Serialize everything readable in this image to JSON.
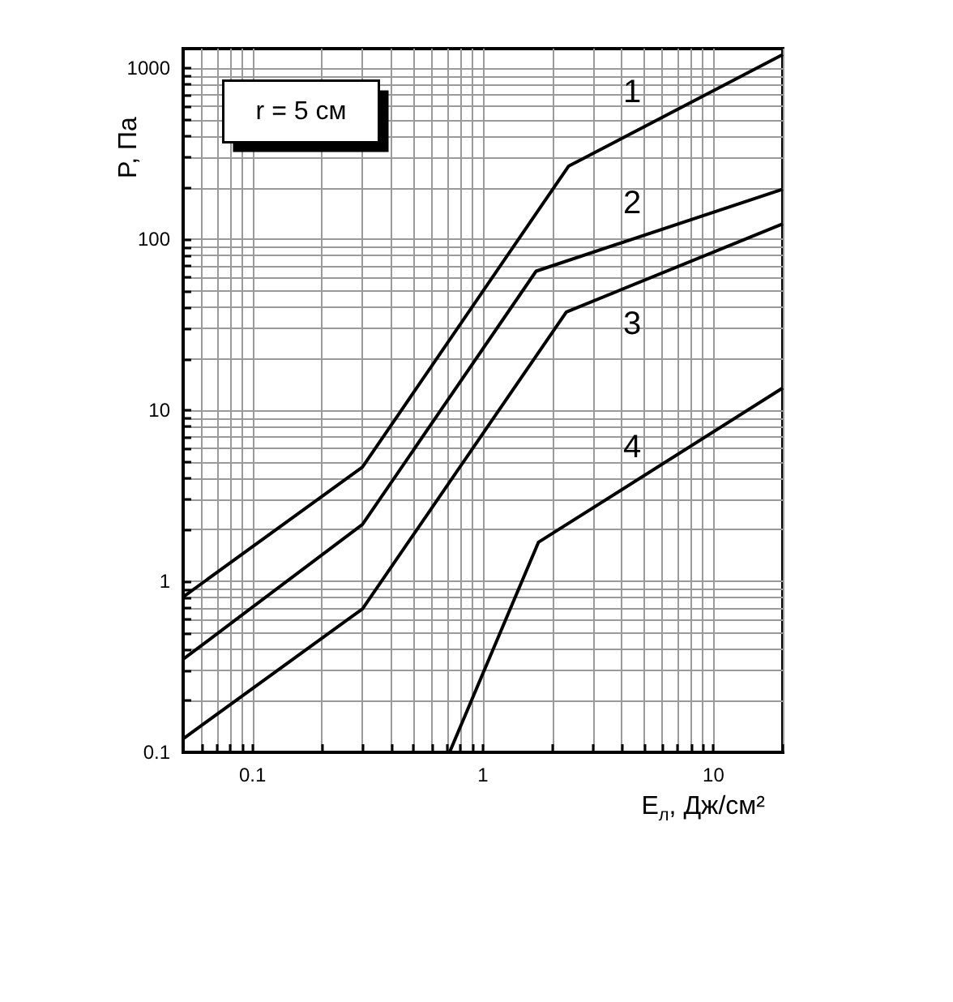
{
  "chart_data": {
    "type": "line",
    "xlabel": "E$_{л}$, Дж/см²",
    "ylabel": "P, Па",
    "log": "xy",
    "grid": true,
    "line_style": "solid",
    "marker": "none",
    "xlim": [
      0.05,
      20
    ],
    "ylim": [
      0.1,
      1300
    ],
    "xticks": [
      {
        "value": 0.05,
        "label": null
      },
      {
        "value": 0.06,
        "label": null
      },
      {
        "value": 0.07,
        "label": null
      },
      {
        "value": 0.08,
        "label": null
      },
      {
        "value": 0.09,
        "label": null
      },
      0.1,
      {
        "value": 0.2,
        "label": null
      },
      {
        "value": 0.3,
        "label": null
      },
      {
        "value": 0.4,
        "label": null
      },
      {
        "value": 0.5,
        "label": null
      },
      {
        "value": 0.6,
        "label": null
      },
      {
        "value": 0.7,
        "label": null
      },
      {
        "value": 0.8,
        "label": null
      },
      {
        "value": 0.9,
        "label": null
      },
      1,
      {
        "value": 2,
        "label": null
      },
      {
        "value": 3,
        "label": null
      },
      {
        "value": 4,
        "label": null
      },
      {
        "value": 5,
        "label": null
      },
      {
        "value": 6,
        "label": null
      },
      {
        "value": 7,
        "label": null
      },
      {
        "value": 8,
        "label": null
      },
      {
        "value": 9,
        "label": null
      },
      10,
      {
        "value": 20,
        "label": null
      }
    ],
    "yticks": [
      0.1,
      {
        "value": 0.2,
        "label": null
      },
      {
        "value": 0.3,
        "label": null
      },
      {
        "value": 0.4,
        "label": null
      },
      {
        "value": 0.5,
        "label": null
      },
      {
        "value": 0.6,
        "label": null
      },
      {
        "value": 0.7,
        "label": null
      },
      {
        "value": 0.8,
        "label": null
      },
      {
        "value": 0.9,
        "label": null
      },
      1,
      {
        "value": 2,
        "label": null
      },
      {
        "value": 3,
        "label": null
      },
      {
        "value": 4,
        "label": null
      },
      {
        "value": 5,
        "label": null
      },
      {
        "value": 6,
        "label": null
      },
      {
        "value": 7,
        "label": null
      },
      {
        "value": 8,
        "label": null
      },
      {
        "value": 9,
        "label": null
      },
      10,
      {
        "value": 20,
        "label": null
      },
      {
        "value": 30,
        "label": null
      },
      {
        "value": 40,
        "label": null
      },
      {
        "value": 50,
        "label": null
      },
      {
        "value": 60,
        "label": null
      },
      {
        "value": 70,
        "label": null
      },
      {
        "value": 80,
        "label": null
      },
      {
        "value": 90,
        "label": null
      },
      100,
      {
        "value": 200,
        "label": null
      },
      {
        "value": 300,
        "label": null
      },
      {
        "value": 400,
        "label": null
      },
      {
        "value": 500,
        "label": null
      },
      {
        "value": 600,
        "label": null
      },
      {
        "value": 700,
        "label": null
      },
      {
        "value": 800,
        "label": null
      },
      {
        "value": 900,
        "label": null
      },
      1000
    ],
    "series": [
      {
        "name": "1",
        "color": "#000000",
        "x": [
          0.05,
          0.3,
          2.35,
          20
        ],
        "values": [
          0.81,
          4.65,
          267,
          1200
        ]
      },
      {
        "name": "2",
        "color": "#000000",
        "x": [
          0.05,
          0.3,
          1.7,
          20
        ],
        "values": [
          0.35,
          2.15,
          65,
          196
        ]
      },
      {
        "name": "3",
        "color": "#000000",
        "x": [
          0.05,
          0.3,
          2.3,
          20
        ],
        "values": [
          0.12,
          0.69,
          37.5,
          123
        ]
      },
      {
        "name": "4",
        "color": "#000000",
        "x": [
          0.716,
          1.74,
          20
        ],
        "values": [
          0.1,
          1.69,
          13.5
        ]
      }
    ],
    "annotations": [
      "r = 5 см"
    ]
  }
}
